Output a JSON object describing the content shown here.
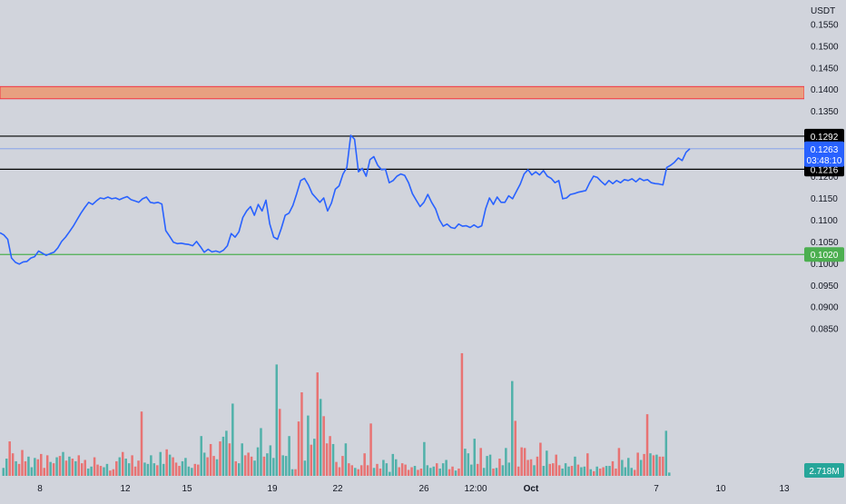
{
  "chart_data": {
    "type": "line",
    "currency": "USDT",
    "x_tick_labels": [
      "8",
      "12",
      "15",
      "19",
      "22",
      "26",
      "12:00",
      "Oct",
      "7",
      "10",
      "13"
    ],
    "y_tick_labels": [
      "0.1550",
      "0.1500",
      "0.1450",
      "0.1400",
      "0.1350",
      "0.1200",
      "0.1150",
      "0.1100",
      "0.1050",
      "0.1000",
      "0.0950",
      "0.0900",
      "0.0850"
    ],
    "ylim": [
      0.0795,
      0.158
    ],
    "price_series": {
      "color": "#2962ff",
      "values": [
        0.107,
        0.1065,
        0.1055,
        0.1012,
        0.1002,
        0.0998,
        0.1003,
        0.1004,
        0.1012,
        0.1015,
        0.1028,
        0.1023,
        0.1018,
        0.1022,
        0.1025,
        0.1035,
        0.105,
        0.106,
        0.1072,
        0.1085,
        0.11,
        0.1115,
        0.1128,
        0.114,
        0.1135,
        0.1143,
        0.115,
        0.1148,
        0.1152,
        0.1148,
        0.115,
        0.1146,
        0.115,
        0.1153,
        0.1146,
        0.1143,
        0.114,
        0.1148,
        0.1152,
        0.114,
        0.1138,
        0.114,
        0.1136,
        0.1075,
        0.1062,
        0.1048,
        0.1045,
        0.1046,
        0.1044,
        0.1043,
        0.104,
        0.105,
        0.1038,
        0.1025,
        0.1032,
        0.1026,
        0.1028,
        0.1025,
        0.103,
        0.104,
        0.1068,
        0.106,
        0.1072,
        0.1105,
        0.112,
        0.113,
        0.111,
        0.1135,
        0.112,
        0.1145,
        0.109,
        0.106,
        0.1055,
        0.108,
        0.111,
        0.1115,
        0.1133,
        0.116,
        0.119,
        0.1195,
        0.118,
        0.116,
        0.115,
        0.114,
        0.115,
        0.112,
        0.1138,
        0.117,
        0.1178,
        0.1205,
        0.122,
        0.1294,
        0.1285,
        0.121,
        0.1218,
        0.12,
        0.1238,
        0.1245,
        0.1225,
        0.1215,
        0.1216,
        0.1185,
        0.119,
        0.12,
        0.1205,
        0.1202,
        0.1185,
        0.116,
        0.1145,
        0.113,
        0.114,
        0.1158,
        0.114,
        0.1125,
        0.11,
        0.1085,
        0.109,
        0.1082,
        0.108,
        0.109,
        0.1085,
        0.1086,
        0.1082,
        0.1088,
        0.1082,
        0.1086,
        0.1125,
        0.115,
        0.1135,
        0.1152,
        0.114,
        0.114,
        0.1155,
        0.1148,
        0.1165,
        0.1182,
        0.1205,
        0.1215,
        0.1203,
        0.121,
        0.1203,
        0.1213,
        0.12,
        0.1195,
        0.1185,
        0.119,
        0.1148,
        0.115,
        0.1158,
        0.116,
        0.1163,
        0.1165,
        0.1167,
        0.1185,
        0.12,
        0.1197,
        0.1188,
        0.118,
        0.119,
        0.1183,
        0.119,
        0.1185,
        0.1192,
        0.119,
        0.1194,
        0.1187,
        0.1195,
        0.119,
        0.1192,
        0.1185,
        0.1183,
        0.1182,
        0.118,
        0.122,
        0.1225,
        0.1232,
        0.1242,
        0.1236,
        0.1255,
        0.1263
      ]
    },
    "volume_series": {
      "up_color": "#26a69a",
      "down_color": "#ef5350",
      "values": [
        1.2,
        2.6,
        5.2,
        3.4,
        2.2,
        1.8,
        3.9,
        2.2,
        2.9,
        1.3,
        2.7,
        2.5,
        3.3,
        1.2,
        3.1,
        2.1,
        1.9,
        2.8,
        3.0,
        3.6,
        2.3,
        2.9,
        2.6,
        2.2,
        3.1,
        1.9,
        2.4,
        1.1,
        1.4,
        2.8,
        1.7,
        1.5,
        1.3,
        1.8,
        0.8,
        1.0,
        2.2,
        2.8,
        3.6,
        2.6,
        1.9,
        3.1,
        1.4,
        2.3,
        9.7,
        2.0,
        1.8,
        3.1,
        1.9,
        1.6,
        3.6,
        1.8,
        4.0,
        3.2,
        2.8,
        2.0,
        1.5,
        2.2,
        2.7,
        1.4,
        1.2,
        1.8,
        1.7,
        6.0,
        3.5,
        2.8,
        4.8,
        3.0,
        2.5,
        5.2,
        5.9,
        6.8,
        4.9,
        10.9,
        2.2,
        1.9,
        4.9,
        3.1,
        3.5,
        2.9,
        2.3,
        4.3,
        7.2,
        2.9,
        3.4,
        4.6,
        2.7,
        16.8,
        10.1,
        3.1,
        3.0,
        6.0,
        1.0,
        1.0,
        8.2,
        12.6,
        2.3,
        9.1,
        4.7,
        5.6,
        15.6,
        11.6,
        9.0,
        4.9,
        6.0,
        4.8,
        2.1,
        1.3,
        3.0,
        4.9,
        1.9,
        1.6,
        1.2,
        1.0,
        1.6,
        3.4,
        1.6,
        7.9,
        1.2,
        1.8,
        1.1,
        2.4,
        1.9,
        0.6,
        3.3,
        2.5,
        1.3,
        1.9,
        1.7,
        0.9,
        1.3,
        1.5,
        0.9,
        1.1,
        5.1,
        1.6,
        1.2,
        1.4,
        1.9,
        1.1,
        1.9,
        2.4,
        1.0,
        1.4,
        0.8,
        1.1,
        18.5,
        4.1,
        3.4,
        1.7,
        5.6,
        1.8,
        4.2,
        1.2,
        3.0,
        3.2,
        1.1,
        1.2,
        2.6,
        1.6,
        4.2,
        2.0,
        14.3,
        8.3,
        1.4,
        4.3,
        4.2,
        2.4,
        2.5,
        1.6,
        2.9,
        5.0,
        1.5,
        3.8,
        1.8,
        1.9,
        3.2,
        1.6,
        1.1,
        1.9,
        1.4,
        1.5,
        2.9,
        1.7,
        1.3,
        1.4,
        3.4,
        1.0,
        0.7,
        1.4,
        1.1,
        1.3,
        1.5,
        1.5,
        2.2,
        1.1,
        4.2,
        2.4,
        1.3,
        2.7,
        1.2,
        0.9,
        3.5,
        2.4,
        3.3,
        9.3,
        3.4,
        3.1,
        3.2,
        2.9,
        2.9,
        6.8,
        0.5
      ],
      "down_indices": [
        2,
        3,
        5,
        6,
        7,
        11,
        12,
        13,
        14,
        16,
        18,
        20,
        22,
        24,
        25,
        26,
        29,
        30,
        31,
        34,
        35,
        36,
        38,
        41,
        42,
        43,
        44,
        49,
        52,
        54,
        55,
        56,
        61,
        62,
        65,
        66,
        67,
        69,
        72,
        74,
        77,
        78,
        79,
        83,
        88,
        93,
        94,
        95,
        98,
        100,
        102,
        103,
        104,
        106,
        107,
        108,
        110,
        111,
        113,
        114,
        115,
        116,
        117,
        119,
        120,
        126,
        127,
        128,
        129,
        130,
        132,
        133,
        138,
        142,
        143,
        145,
        146,
        151,
        152,
        156,
        158,
        163,
        164,
        165,
        166,
        167,
        168,
        170,
        171,
        174,
        175,
        176,
        177,
        181,
        183,
        186,
        188,
        190,
        191,
        194,
        195,
        196,
        201,
        202,
        204,
        205,
        207,
        209,
        210,
        213,
        215,
        216,
        218
      ],
      "last_volume_label": "2.718M"
    },
    "resistance_zone": {
      "from": 0.1378,
      "to": 0.1406
    },
    "horizontal_lines": [
      {
        "value": 0.1292,
        "label": "0.1292",
        "color": "#000000"
      },
      {
        "value": 0.1216,
        "label": "0.1216",
        "color": "#000000"
      },
      {
        "value": 0.102,
        "label": "0.1020",
        "color": "#4caf50"
      }
    ],
    "last_price": {
      "value": 0.1263,
      "label": "0.1263",
      "countdown": "03:48:10"
    },
    "grid": false,
    "legend": "none"
  }
}
